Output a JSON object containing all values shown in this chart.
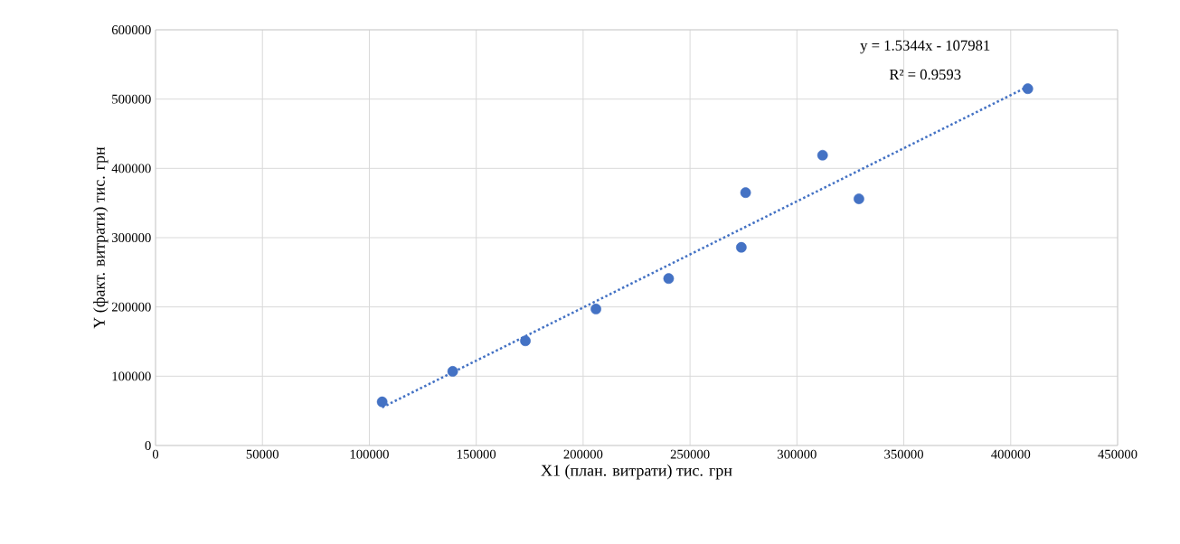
{
  "chart_data": {
    "type": "scatter",
    "xlabel": "X1 (план. витрати) тис. грн",
    "ylabel": "Y (факт. витрати) тис. грн",
    "series": [
      {
        "color": "#4472c4",
        "marker": "circle",
        "x": [
          106000,
          139000,
          173000,
          206000,
          240000,
          274000,
          276000,
          312000,
          329000,
          408000
        ],
        "values": [
          63000,
          107000,
          151000,
          197000,
          241000,
          286000,
          365000,
          419000,
          356000,
          515000
        ]
      },
      {
        "type": "line",
        "color": "#4472c4",
        "marker": "none",
        "line_style": "dotted",
        "x": [
          106000,
          408000
        ],
        "values": [
          55000,
          518000
        ]
      }
    ],
    "xlim": [
      0,
      450000
    ],
    "xticks": [
      0,
      50000,
      100000,
      150000,
      200000,
      250000,
      300000,
      350000,
      400000,
      450000
    ],
    "ylim": [
      0,
      600000
    ],
    "yticks": [
      0,
      100000,
      200000,
      300000,
      400000,
      500000,
      600000
    ],
    "grid": true,
    "annotations": [
      "y = 1.5344x - 107981",
      "R² = 0.9593"
    ]
  }
}
